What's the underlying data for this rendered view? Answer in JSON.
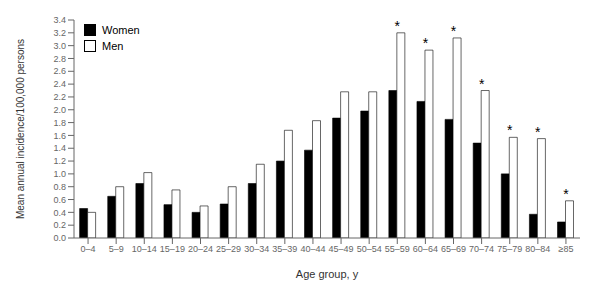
{
  "chart_data": {
    "type": "bar",
    "categories": [
      "0–4",
      "5–9",
      "10–14",
      "15–19",
      "20–24",
      "25–29",
      "30–34",
      "35–39",
      "40–44",
      "45–49",
      "50–54",
      "55–59",
      "60–64",
      "65–69",
      "70–74",
      "75–79",
      "80–84",
      "≥85"
    ],
    "series": [
      {
        "name": "Women",
        "color": "#000000",
        "values": [
          0.46,
          0.65,
          0.85,
          0.52,
          0.4,
          0.53,
          0.85,
          1.2,
          1.37,
          1.87,
          1.98,
          2.3,
          2.13,
          1.85,
          1.48,
          1.0,
          0.37,
          0.25
        ]
      },
      {
        "name": "Men",
        "color": "#ffffff",
        "values": [
          0.4,
          0.8,
          1.02,
          0.75,
          0.5,
          0.8,
          1.15,
          1.68,
          1.83,
          2.28,
          2.28,
          3.2,
          2.93,
          3.12,
          2.3,
          1.57,
          1.55,
          0.58
        ]
      }
    ],
    "xlabel": "Age group, y",
    "ylabel": "Mean annual incidence/100,000 persons",
    "ylim": [
      0,
      3.4
    ],
    "yticks": [
      {
        "value": 0.0,
        "label": "0.0"
      },
      0.2,
      0.4,
      0.6,
      0.8,
      {
        "value": 1.0,
        "label": "1.0"
      },
      1.2,
      1.4,
      1.6,
      1.8,
      {
        "value": 2.0,
        "label": "2.0"
      },
      2.2,
      2.4,
      2.6,
      2.8,
      {
        "value": 3.0,
        "label": "3.0"
      },
      3.2,
      3.4
    ],
    "annotations": [
      {
        "category": "55–59",
        "text": "*"
      },
      {
        "category": "60–64",
        "text": "*"
      },
      {
        "category": "65–69",
        "text": "*"
      },
      {
        "category": "70–74",
        "text": "*"
      },
      {
        "category": "75–79",
        "text": "*"
      },
      {
        "category": "80–84",
        "text": "*"
      },
      {
        "category": "≥85",
        "text": "*"
      }
    ],
    "legend": "upper left",
    "grid": false
  }
}
